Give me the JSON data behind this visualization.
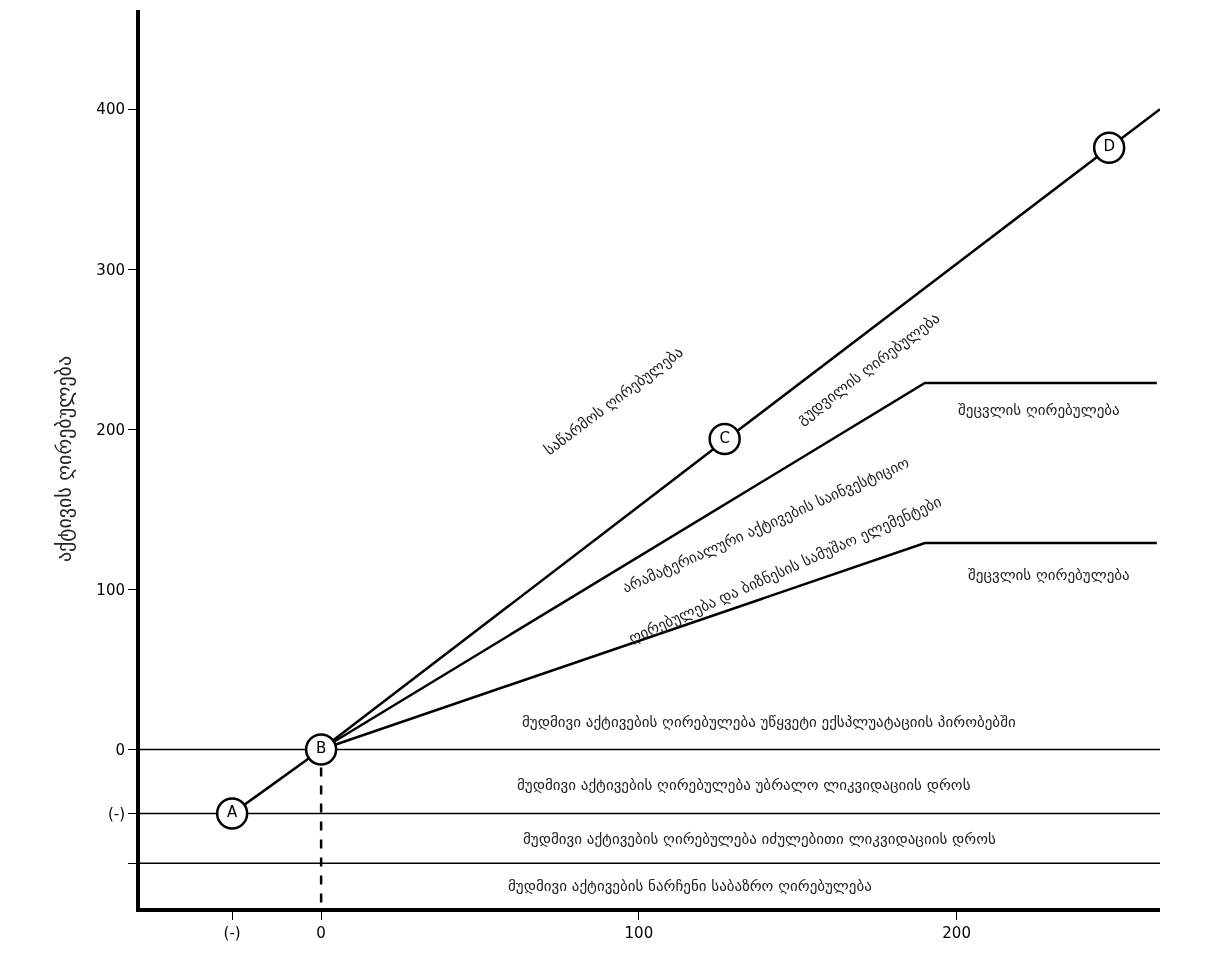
{
  "chart_data": {
    "type": "line",
    "ylabel": "აქტივის ღირებულება",
    "xlim": [
      -57,
      264
    ],
    "ylim": [
      -99,
      462
    ],
    "xticks": [
      {
        "value": -28,
        "label": "(-)"
      },
      0,
      100,
      200
    ],
    "yticks": [
      {
        "value": -71,
        "label": null
      },
      {
        "value": -40,
        "label": "(-)"
      },
      0,
      100,
      200,
      300,
      400
    ],
    "grid": false,
    "series": [
      {
        "color": "#000000",
        "x": [
          -28,
          0,
          127,
          248,
          264
        ],
        "values": [
          -40,
          0,
          193,
          376,
          400
        ]
      },
      {
        "color": "#000000",
        "x": [
          0,
          190,
          263
        ],
        "values": [
          0,
          229,
          229
        ]
      },
      {
        "color": "#000000",
        "x": [
          0,
          190,
          263
        ],
        "values": [
          0,
          129,
          129
        ]
      },
      {
        "color": "#000000",
        "x": [
          0,
          0
        ],
        "values": [
          0,
          -99
        ],
        "line_style": "dashed"
      },
      {
        "type": "scatter",
        "marker": "circle",
        "color": "#ffffff",
        "x": [
          -28,
          0,
          127,
          248
        ],
        "values": [
          -40,
          0,
          194,
          376
        ],
        "value_labels": [
          "A",
          "B",
          "C",
          "D"
        ]
      }
    ],
    "ref_lines": [
      {
        "axis": "y",
        "value": 0,
        "color": "#000000"
      },
      {
        "axis": "y",
        "value": -40,
        "color": "#000000"
      },
      {
        "axis": "y",
        "value": -71,
        "color": "#000000"
      }
    ],
    "annotations": [
      "საწარმოს ღირებულება",
      "გუდვილის ღირებულება",
      "შეცვლის ღირებულება",
      "არამატერიალური აქტივების საინვესტიციო",
      "ღირებულება და ბიზნესის სამუშაო ელემენტები",
      "შეცვლის ღირებულება",
      "მუდმივი აქტივების ღირებულება უწყვეტი ექსპლუატაციის პირობებში",
      "მუდმივი აქტივების ღირებულება უბრალო ლიკვიდაციის დროს",
      "მუდმივი აქტივების ღირებულება იძულებითი ლიკვიდაციის დროს",
      "მუდმივი აქტივების ნარჩენი საბაზრო ღირებულება"
    ]
  }
}
